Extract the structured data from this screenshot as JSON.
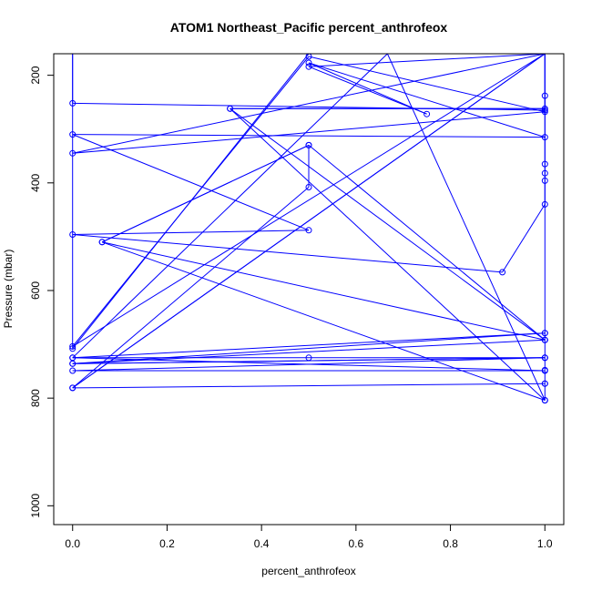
{
  "chart_data": {
    "type": "line",
    "title": "ATOM1 Northeast_Pacific percent_anthrofeox",
    "xlabel": "percent_anthrofeox",
    "ylabel": "Pressure (mbar)",
    "xlim": [
      -0.04,
      1.04
    ],
    "ylim": [
      1035,
      160
    ],
    "y_inverted": true,
    "x_ticks": [
      0.0,
      0.2,
      0.4,
      0.6,
      0.8,
      1.0
    ],
    "x_tick_labels": [
      "0.0",
      "0.2",
      "0.4",
      "0.6",
      "0.8",
      "1.0"
    ],
    "y_ticks": [
      200,
      400,
      600,
      800,
      1000
    ],
    "y_tick_labels": [
      "200",
      "400",
      "600",
      "800",
      "1000"
    ],
    "grid": false,
    "series": [
      {
        "color": "#0000ff",
        "marker": "open-circle",
        "points": [
          [
            0.0,
            160
          ],
          [
            0.0,
            252
          ],
          [
            1.0,
            265
          ],
          [
            1.0,
            160
          ],
          [
            0.0,
            704
          ],
          [
            0.5,
            165
          ],
          [
            1.0,
            268
          ],
          [
            0.0,
            345
          ],
          [
            1.0,
            160
          ],
          [
            0.0,
            781
          ],
          [
            1.0,
            160
          ],
          [
            0.5,
            184
          ],
          [
            0.75,
            272
          ],
          [
            0.5,
            177
          ],
          [
            1.0,
            315
          ],
          [
            0.0,
            310
          ],
          [
            0.5,
            488
          ],
          [
            0.0,
            496
          ],
          [
            0.91,
            566
          ],
          [
            1.0,
            440
          ],
          [
            1.0,
            160
          ],
          [
            0.0,
            160
          ],
          [
            0.0,
            708
          ],
          [
            0.5,
            160
          ],
          [
            1.0,
            160
          ],
          [
            1.0,
            238
          ],
          [
            1.0,
            365
          ],
          [
            1.0,
            382
          ],
          [
            1.0,
            396
          ],
          [
            1.0,
            679
          ],
          [
            1.0,
            692
          ],
          [
            1.0,
            725
          ],
          [
            1.0,
            748
          ],
          [
            1.0,
            773
          ],
          [
            1.0,
            804
          ],
          [
            0.6667,
            160
          ],
          [
            0.0,
            725
          ],
          [
            0.5,
            725
          ],
          [
            1.0,
            725
          ],
          [
            0.0,
            736
          ],
          [
            1.0,
            725
          ],
          [
            0.0,
            749
          ],
          [
            1.0,
            749
          ],
          [
            0.0,
            725
          ],
          [
            1.0,
            679
          ],
          [
            0.0,
            736
          ],
          [
            1.0,
            692
          ],
          [
            0.3333,
            262
          ],
          [
            1.0,
            262
          ],
          [
            0.3333,
            262
          ],
          [
            1.0,
            804
          ],
          [
            0.0625,
            510
          ],
          [
            0.5,
            330
          ],
          [
            0.0625,
            510
          ],
          [
            1.0,
            692
          ],
          [
            0.5,
            330
          ],
          [
            0.5,
            408
          ],
          [
            0.0,
            781
          ],
          [
            1.0,
            773
          ]
        ]
      }
    ]
  }
}
